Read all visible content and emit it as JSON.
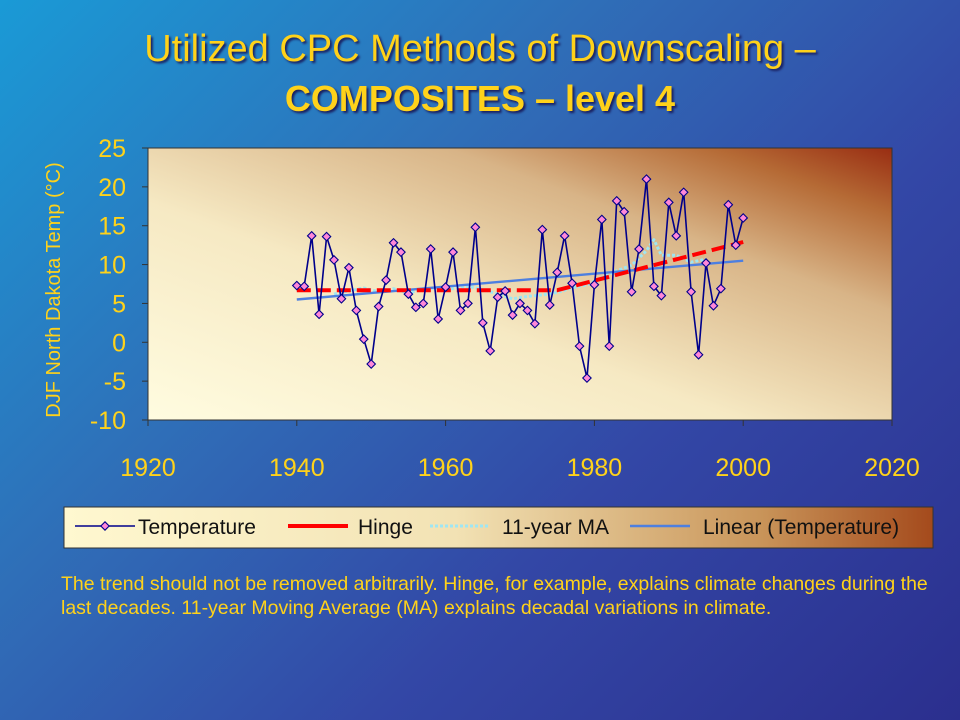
{
  "slide": {
    "title_line1": "Utilized CPC Methods of Downscaling –",
    "title_line2": "COMPOSITES – level 4",
    "caption": "The trend should not be removed arbitrarily.  Hinge, for example, explains climate changes  during the last decades. 11-year Moving Average (MA) explains decadal variations in climate."
  },
  "colors": {
    "title": "#ffd21a",
    "temperature_line": "#00008b",
    "temperature_marker_fill": "#ff88d8",
    "hinge": "#ff0000",
    "ma": "#9fe6f2",
    "linear": "#4d7fe0"
  },
  "chart_data": {
    "type": "line",
    "ylabel": "DJF North Dakota Temp (°C)",
    "xlabel": "",
    "xlim": [
      1920,
      2020
    ],
    "ylim": [
      -10,
      25
    ],
    "x_ticks": [
      1920,
      1940,
      1960,
      1980,
      2000,
      2020
    ],
    "y_ticks": [
      25,
      20,
      15,
      10,
      5,
      0,
      -5,
      -10
    ],
    "legend_position": "bottom",
    "series": [
      {
        "name": "Temperature",
        "style": "line-diamond",
        "x": [
          1940,
          1941,
          1942,
          1943,
          1944,
          1945,
          1946,
          1947,
          1948,
          1949,
          1950,
          1951,
          1952,
          1953,
          1954,
          1955,
          1956,
          1957,
          1958,
          1959,
          1960,
          1961,
          1962,
          1963,
          1964,
          1965,
          1966,
          1967,
          1968,
          1969,
          1970,
          1971,
          1972,
          1973,
          1974,
          1975,
          1976,
          1977,
          1978,
          1979,
          1980,
          1981,
          1982,
          1983,
          1984,
          1985,
          1986,
          1987,
          1988,
          1989,
          1990,
          1991,
          1992,
          1993,
          1994,
          1995,
          1996,
          1997,
          1998,
          1999,
          2000
        ],
        "values": [
          7.3,
          7.2,
          13.7,
          3.6,
          13.6,
          10.6,
          5.6,
          9.6,
          4.1,
          0.4,
          -2.8,
          4.6,
          8,
          12.8,
          11.6,
          6.2,
          4.5,
          5,
          12,
          3,
          7.1,
          11.6,
          4.1,
          5,
          14.8,
          2.5,
          -1.1,
          5.8,
          6.6,
          3.5,
          5,
          4.1,
          2.4,
          14.5,
          4.8,
          9,
          13.7,
          7.6,
          -0.5,
          -4.6,
          7.4,
          15.8,
          -0.5,
          18.2,
          16.8,
          6.5,
          12,
          21,
          7.2,
          6,
          18,
          13.7,
          19.3,
          6.5,
          -1.6,
          10.2,
          4.7,
          6.9,
          17.7,
          12.5,
          16
        ]
      },
      {
        "name": "Hinge",
        "style": "dashed",
        "x": [
          1940,
          1975,
          2000
        ],
        "values": [
          6.7,
          6.7,
          12.9
        ]
      },
      {
        "name": "11-year MA",
        "style": "line",
        "x": [
          1945,
          1947,
          1949,
          1951,
          1953,
          1955,
          1957,
          1959,
          1961,
          1963,
          1965,
          1967,
          1969,
          1971,
          1973,
          1975,
          1977,
          1979,
          1981,
          1983,
          1985,
          1987,
          1988,
          1989,
          1991,
          1993,
          1995
        ],
        "values": [
          6.2,
          6.6,
          7,
          6.5,
          6.9,
          6.3,
          6.9,
          7,
          6.9,
          7.2,
          6.8,
          6.2,
          5.6,
          5.9,
          6.1,
          6.4,
          7,
          7.4,
          8.3,
          9.2,
          9.9,
          11.8,
          13.2,
          11.2,
          11.2,
          10.3,
          10.7
        ]
      },
      {
        "name": "Linear (Temperature)",
        "style": "line",
        "x": [
          1940,
          2000
        ],
        "values": [
          5.5,
          10.5
        ]
      }
    ]
  }
}
